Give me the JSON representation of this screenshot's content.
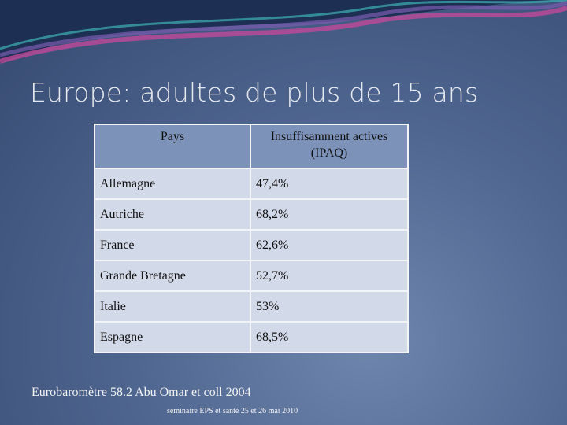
{
  "title": "Europe: adultes de plus de 15 ans",
  "table": {
    "header": [
      "Pays",
      "Insuffisamment actives  (IPAQ)"
    ],
    "rows": [
      [
        "Allemagne",
        "47,4%"
      ],
      [
        "Autriche",
        "68,2%"
      ],
      [
        "France",
        "62,6%"
      ],
      [
        "Grande Bretagne",
        "52,7%"
      ],
      [
        "Italie",
        "53%"
      ],
      [
        "Espagne",
        "68,5%"
      ]
    ]
  },
  "footer": {
    "source": "Eurobaromètre 58.2 Abu Omar  et coll 2004",
    "note": "seminaire EPS et santé  25 et 26 mai 2010"
  }
}
